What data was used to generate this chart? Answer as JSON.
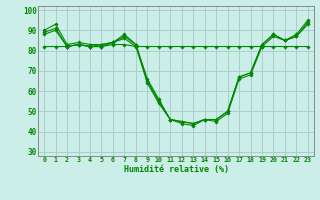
{
  "title": "",
  "xlabel": "Humidité relative (%)",
  "ylabel": "",
  "background_color": "#cceee8",
  "grid_color": "#aacccc",
  "line_color": "#008800",
  "marker_color": "#008800",
  "xlim": [
    -0.5,
    23.5
  ],
  "ylim": [
    28,
    102
  ],
  "yticks": [
    30,
    40,
    50,
    60,
    70,
    80,
    90,
    100
  ],
  "xticks": [
    0,
    1,
    2,
    3,
    4,
    5,
    6,
    7,
    8,
    9,
    10,
    11,
    12,
    13,
    14,
    15,
    16,
    17,
    18,
    19,
    20,
    21,
    22,
    23
  ],
  "series": [
    [
      90,
      93,
      83,
      84,
      83,
      83,
      84,
      88,
      83,
      66,
      56,
      46,
      45,
      44,
      46,
      46,
      50,
      67,
      69,
      83,
      88,
      85,
      88,
      95
    ],
    [
      89,
      91,
      82,
      83,
      82,
      83,
      84,
      87,
      83,
      65,
      55,
      46,
      45,
      44,
      46,
      46,
      50,
      67,
      69,
      83,
      88,
      85,
      87,
      94
    ],
    [
      88,
      90,
      82,
      83,
      82,
      82,
      84,
      86,
      82,
      64,
      54,
      46,
      44,
      43,
      46,
      45,
      49,
      66,
      68,
      82,
      87,
      85,
      87,
      93
    ],
    [
      82,
      82,
      82,
      83,
      82,
      82,
      83,
      83,
      82,
      82,
      82,
      82,
      82,
      82,
      82,
      82,
      82,
      82,
      82,
      82,
      82,
      82,
      82,
      82
    ]
  ]
}
